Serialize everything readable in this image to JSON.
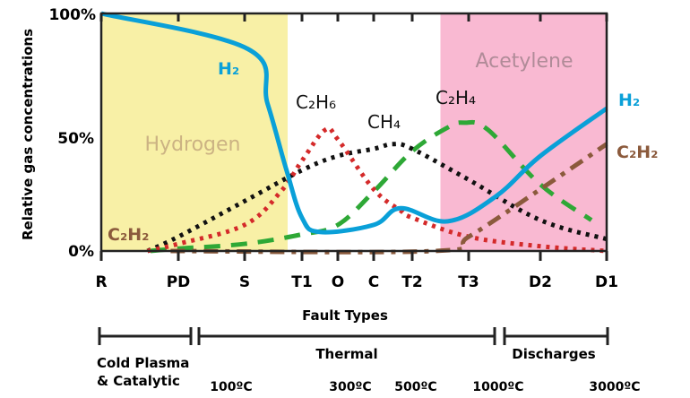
{
  "chart_data": {
    "type": "line",
    "ylabel": "Relative gas concentrations",
    "xlabel": "Fault Types",
    "ylim": [
      0,
      100
    ],
    "y_ticks": [
      "0%",
      "50%",
      "100%"
    ],
    "y_tick_values": [
      0,
      50,
      100
    ],
    "categories": [
      "R",
      "PD",
      "S",
      "T1",
      "O",
      "C",
      "T2",
      "T3",
      "D2",
      "D1"
    ],
    "grid": false,
    "regions": [
      {
        "label": "Hydrogen",
        "from": 0,
        "to": 2.75,
        "color": "#f8f0a6",
        "text_color": "#cbb283"
      },
      {
        "label": "Acetylene",
        "from": 6.5,
        "to": 9,
        "color": "#f9b9d2",
        "text_color": "#b08b98"
      }
    ],
    "series": [
      {
        "name": "H₂",
        "style": "solid",
        "color": "#0aa0d8",
        "x": [
          0,
          2.06,
          2.4,
          2.73,
          3,
          3.5,
          5,
          5.7,
          6.63,
          7.38,
          8,
          9
        ],
        "y": [
          100,
          85,
          62,
          34,
          14,
          8,
          11,
          18,
          12.5,
          23,
          40,
          60
        ]
      },
      {
        "name": "C₂H₆",
        "style": "dotted",
        "color": "#d42a2a",
        "x": [
          0.6,
          1,
          2,
          2.63,
          3,
          3.65,
          4,
          5,
          5.7,
          6,
          7,
          8,
          9
        ],
        "y": [
          0,
          3,
          11,
          25,
          38,
          51,
          47,
          26,
          17,
          14,
          6,
          2,
          0
        ]
      },
      {
        "name": "CH₄",
        "style": "dotted",
        "color": "#111111",
        "x": [
          0.6,
          1,
          2,
          3,
          4,
          5,
          5.5,
          6,
          7,
          8,
          9
        ],
        "y": [
          0,
          6,
          21,
          34,
          40,
          43,
          45,
          43,
          30,
          13,
          5
        ]
      },
      {
        "name": "C₂H₄",
        "style": "dashed",
        "color": "#2ea836",
        "x": [
          0.64,
          1,
          2,
          3,
          4,
          5,
          6,
          6.63,
          6.92,
          7.27,
          8,
          8.77
        ],
        "y": [
          0,
          1,
          3,
          7,
          11,
          25,
          42,
          52,
          54,
          51,
          28,
          13
        ]
      },
      {
        "name": "C₂H₂",
        "style": "dashdot",
        "color": "#8b5a3c",
        "x": [
          0.9,
          6.4,
          7,
          8,
          9
        ],
        "y": [
          0,
          0,
          6,
          26,
          45
        ]
      }
    ],
    "fault_groups": [
      {
        "label": "Cold Plasma",
        "label2": "& Catalytic"
      },
      {
        "label": "Thermal"
      },
      {
        "label": "Discharges"
      }
    ],
    "temperatures": [
      "100ºC",
      "300ºC",
      "500ºC",
      "1000ºC",
      "3000ºC"
    ]
  }
}
